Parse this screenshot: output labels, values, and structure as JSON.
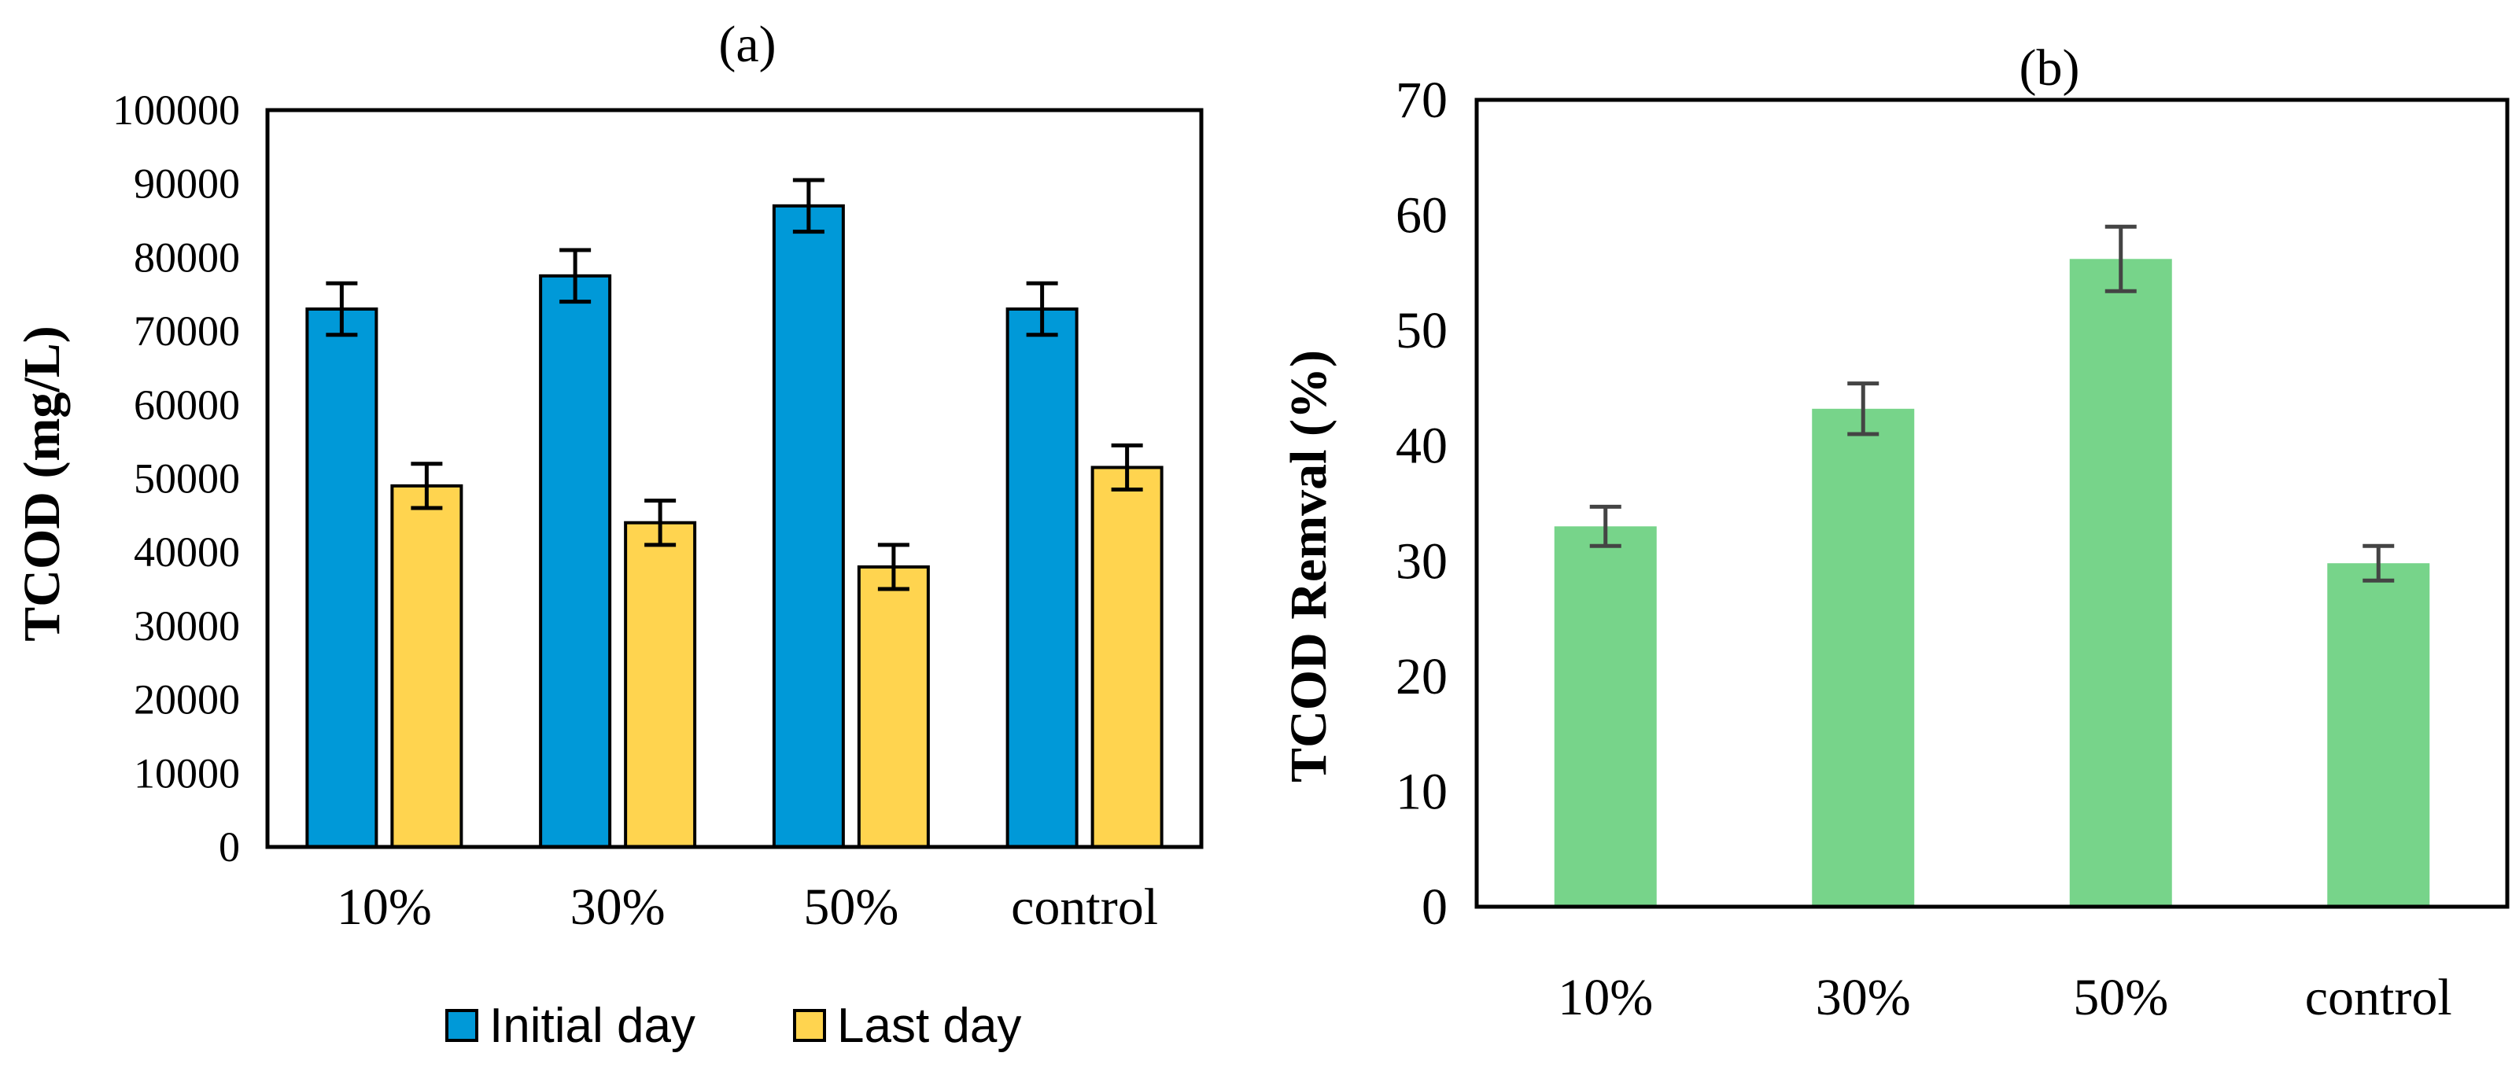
{
  "chart_data": [
    {
      "type": "bar",
      "title": "(a)",
      "xlabel": "",
      "ylabel": "TCOD (mg/L)",
      "ylim": [
        0,
        100000
      ],
      "yticks": [
        0,
        10000,
        20000,
        30000,
        40000,
        50000,
        60000,
        70000,
        80000,
        90000,
        100000
      ],
      "categories": [
        "10%",
        "30%",
        "50%",
        "control"
      ],
      "series": [
        {
          "name": "Initial day",
          "color": "#0099D8",
          "values": [
            73000,
            77500,
            87000,
            73000
          ],
          "errors": [
            3500,
            3500,
            3500,
            3500
          ]
        },
        {
          "name": "Last day",
          "color": "#FFD44F",
          "values": [
            49000,
            44000,
            38000,
            51500
          ],
          "errors": [
            3000,
            3000,
            3000,
            3000
          ]
        }
      ],
      "legend_position": "bottom"
    },
    {
      "type": "bar",
      "title": "(b)",
      "xlabel": "",
      "ylabel": "TCOD Remval (%)",
      "ylim": [
        0,
        70
      ],
      "yticks": [
        0,
        10,
        20,
        30,
        40,
        50,
        60,
        70
      ],
      "categories": [
        "10%",
        "30%",
        "50%",
        "control"
      ],
      "series": [
        {
          "name": "TCOD Remval",
          "color": "#77D48A",
          "values": [
            33,
            43.2,
            56.2,
            29.8
          ],
          "errors": [
            1.7,
            2.2,
            2.8,
            1.5
          ]
        }
      ]
    }
  ]
}
